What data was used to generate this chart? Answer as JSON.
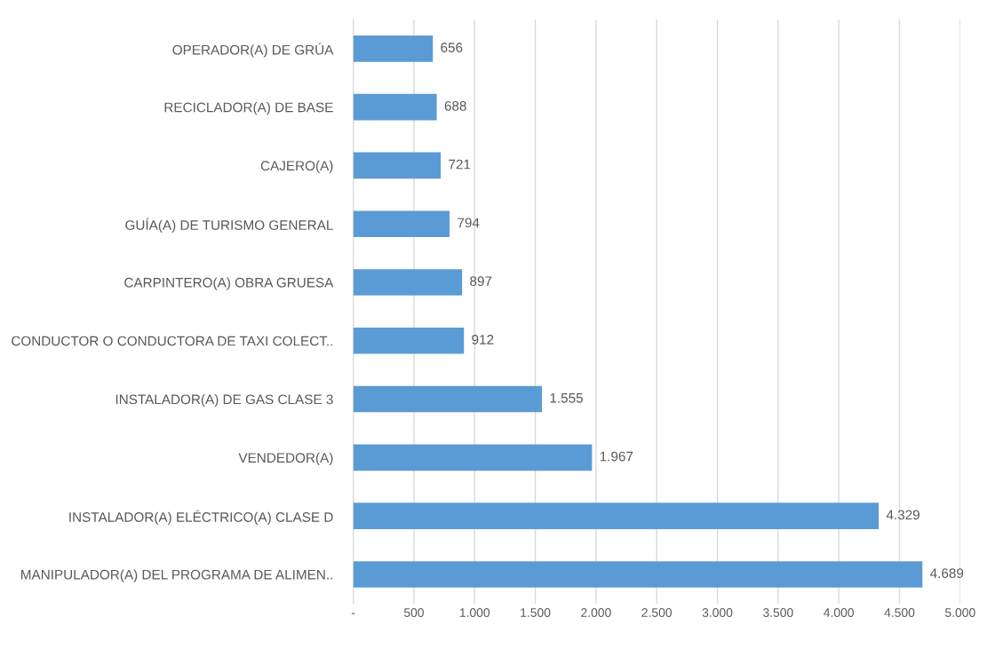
{
  "chart_data": {
    "type": "bar",
    "orientation": "horizontal",
    "categories": [
      "OPERADOR(A) DE GRÚA",
      "RECICLADOR(A) DE BASE",
      "CAJERO(A)",
      "GUÍA(A) DE TURISMO GENERAL",
      "CARPINTERO(A) OBRA GRUESA",
      "CONDUCTOR O CONDUCTORA DE TAXI COLECT..",
      "INSTALADOR(A) DE GAS CLASE 3",
      "VENDEDOR(A)",
      "INSTALADOR(A) ELÉCTRICO(A) CLASE D",
      "MANIPULADOR(A) DEL PROGRAMA DE ALIMEN.."
    ],
    "values": [
      656,
      688,
      721,
      794,
      897,
      912,
      1555,
      1967,
      4329,
      4689
    ],
    "value_labels": [
      "656",
      "688",
      "721",
      "794",
      "897",
      "912",
      "1.555",
      "1.967",
      "4.329",
      "4.689"
    ],
    "color": "#5b9bd5",
    "xlim": [
      0,
      5000
    ],
    "xticks": [
      {
        "value": 0,
        "label": "-"
      },
      500,
      {
        "value": 1000,
        "label": "1.000"
      },
      {
        "value": 1500,
        "label": "1.500"
      },
      {
        "value": 2000,
        "label": "2.000"
      },
      {
        "value": 2500,
        "label": "2.500"
      },
      {
        "value": 3000,
        "label": "3.000"
      },
      {
        "value": 3500,
        "label": "3.500"
      },
      {
        "value": 4000,
        "label": "4.000"
      },
      {
        "value": 4500,
        "label": "4.500"
      },
      {
        "value": 5000,
        "label": "5.000"
      }
    ],
    "grid": "x",
    "legend": false
  }
}
